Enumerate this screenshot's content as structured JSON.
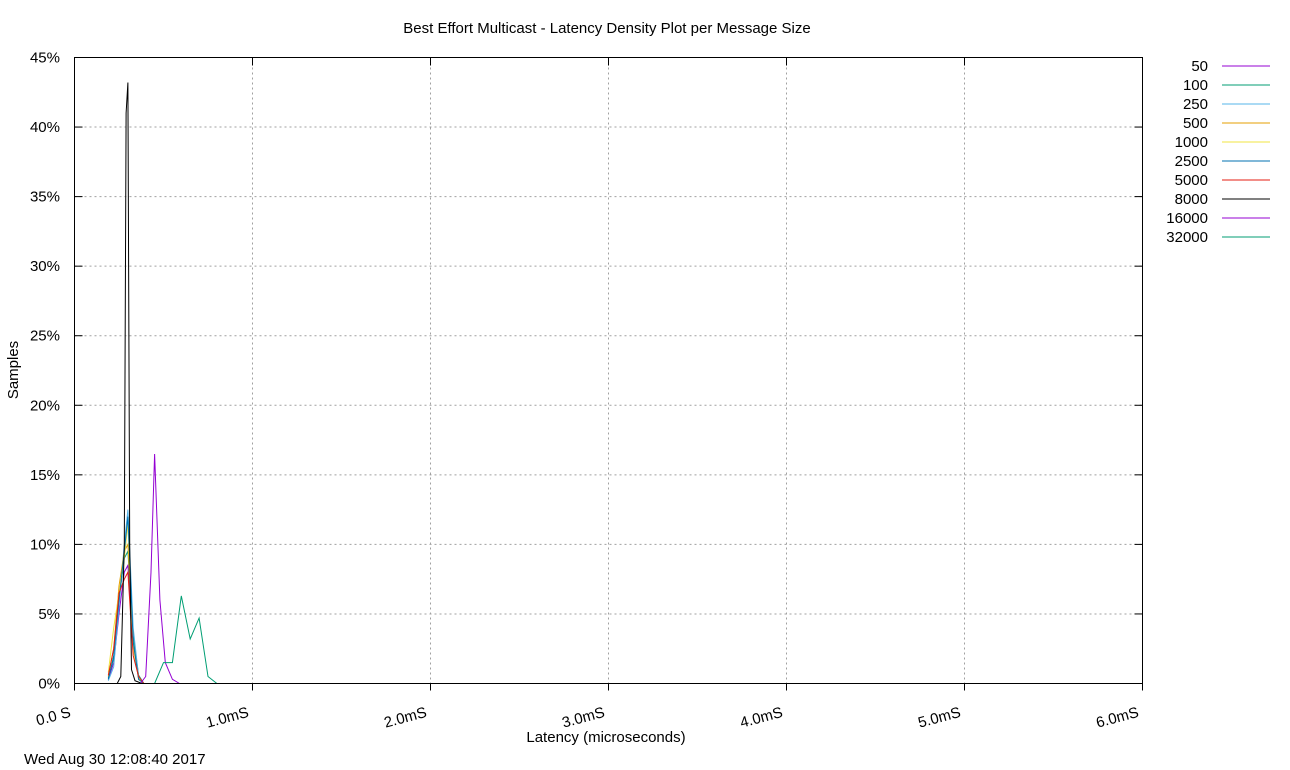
{
  "chart_data": {
    "type": "line",
    "title": "Best Effort Multicast - Latency Density Plot per Message Size",
    "xlabel": "Latency (microseconds)",
    "ylabel": "Samples",
    "timestamp": "Wed Aug 30 12:08:40 2017",
    "xlim": [
      0,
      6.0
    ],
    "ylim": [
      0,
      45
    ],
    "x_unit": "mS",
    "y_unit": "%",
    "xticks": [
      {
        "value": 0.0,
        "label": "0.0 S"
      },
      {
        "value": 1.0,
        "label": "1.0mS"
      },
      {
        "value": 2.0,
        "label": "2.0mS"
      },
      {
        "value": 3.0,
        "label": "3.0mS"
      },
      {
        "value": 4.0,
        "label": "4.0mS"
      },
      {
        "value": 5.0,
        "label": "5.0mS"
      },
      {
        "value": 6.0,
        "label": "6.0mS"
      }
    ],
    "yticks": [
      {
        "value": 0,
        "label": "0%"
      },
      {
        "value": 5,
        "label": "5%"
      },
      {
        "value": 10,
        "label": "10%"
      },
      {
        "value": 15,
        "label": "15%"
      },
      {
        "value": 20,
        "label": "20%"
      },
      {
        "value": 25,
        "label": "25%"
      },
      {
        "value": 30,
        "label": "30%"
      },
      {
        "value": 35,
        "label": "35%"
      },
      {
        "value": 40,
        "label": "40%"
      },
      {
        "value": 45,
        "label": "45%"
      }
    ],
    "grid": true,
    "legend_position": "outside-top-right",
    "series": [
      {
        "name": "50",
        "color": "#9400d3",
        "x": [
          0.19,
          0.22,
          0.25,
          0.28,
          0.3,
          0.33,
          0.36,
          0.39
        ],
        "y": [
          0.3,
          1.5,
          5.0,
          8.0,
          8.5,
          3.0,
          0.5,
          0
        ]
      },
      {
        "name": "100",
        "color": "#009e73",
        "x": [
          0.19,
          0.22,
          0.25,
          0.28,
          0.3,
          0.33,
          0.36,
          0.39
        ],
        "y": [
          0.4,
          1.8,
          6.0,
          9.0,
          9.5,
          3.5,
          0.6,
          0
        ]
      },
      {
        "name": "250",
        "color": "#56b4e9",
        "x": [
          0.19,
          0.22,
          0.25,
          0.28,
          0.3,
          0.33,
          0.36,
          0.39
        ],
        "y": [
          0.2,
          1.2,
          5.5,
          10.0,
          12.5,
          4.0,
          0.5,
          0
        ]
      },
      {
        "name": "500",
        "color": "#e69f00",
        "x": [
          0.19,
          0.22,
          0.25,
          0.28,
          0.3,
          0.33,
          0.36,
          0.39
        ],
        "y": [
          0.5,
          2.5,
          7.0,
          9.5,
          10.0,
          3.0,
          0.3,
          0
        ]
      },
      {
        "name": "1000",
        "color": "#f0e442",
        "x": [
          0.19,
          0.22,
          0.25,
          0.28,
          0.3,
          0.33,
          0.36,
          0.39
        ],
        "y": [
          0.8,
          4.0,
          6.5,
          9.0,
          11.5,
          2.5,
          0.4,
          0
        ]
      },
      {
        "name": "2500",
        "color": "#0072b2",
        "x": [
          0.19,
          0.22,
          0.25,
          0.28,
          0.3,
          0.33,
          0.36,
          0.39
        ],
        "y": [
          0.3,
          2.0,
          6.0,
          9.5,
          12.0,
          3.0,
          0.3,
          0
        ]
      },
      {
        "name": "5000",
        "color": "#e51e10",
        "x": [
          0.19,
          0.22,
          0.25,
          0.28,
          0.3,
          0.33,
          0.36,
          0.39
        ],
        "y": [
          0.6,
          2.5,
          6.5,
          7.5,
          8.0,
          2.0,
          0.5,
          0
        ]
      },
      {
        "name": "8000",
        "color": "#000000",
        "x": [
          0.24,
          0.26,
          0.28,
          0.29,
          0.3,
          0.31,
          0.32,
          0.34,
          0.38
        ],
        "y": [
          0,
          0.5,
          10.0,
          41.0,
          43.2,
          10.0,
          1.0,
          0.2,
          0
        ]
      },
      {
        "name": "16000",
        "color": "#9400d3",
        "x": [
          0.37,
          0.4,
          0.43,
          0.45,
          0.48,
          0.51,
          0.55,
          0.59
        ],
        "y": [
          0,
          0.5,
          8.0,
          16.5,
          6.0,
          1.5,
          0.3,
          0
        ]
      },
      {
        "name": "32000",
        "color": "#009e73",
        "x": [
          0.45,
          0.5,
          0.55,
          0.6,
          0.65,
          0.7,
          0.75,
          0.8
        ],
        "y": [
          0,
          1.5,
          1.5,
          6.3,
          3.2,
          4.7,
          0.5,
          0
        ]
      }
    ]
  }
}
